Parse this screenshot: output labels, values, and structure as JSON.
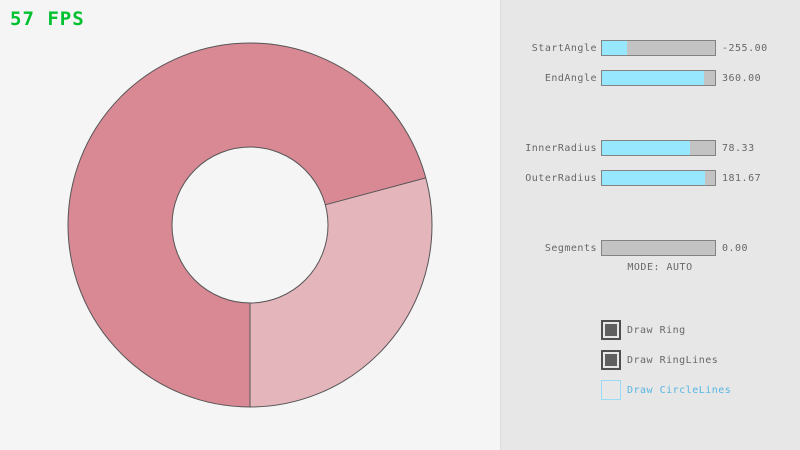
{
  "fps": {
    "text": "57 FPS"
  },
  "colors": {
    "canvas_bg": "#f5f5f5",
    "panel_bg": "#e7e7e7",
    "accent": "#97e8ff",
    "fps_green": "#00c12f",
    "ring_light": "#e5b5bc",
    "ring_dark": "#d98994",
    "ring_outline": "#555555",
    "slider_border": "#838383",
    "slider_track": "#c3c3c3",
    "text_gray": "#686868",
    "blue_text": "#55b6e2",
    "blue_border": "#9adcf5",
    "checkbox_dark": "#5f5f5f",
    "checkbox_border": "#4f4f4f"
  },
  "panel": {
    "sliders": [
      {
        "label": "StartAngle",
        "value": "-255.00",
        "fill_pct": 22
      },
      {
        "label": "EndAngle",
        "value": "360.00",
        "fill_pct": 90
      },
      {
        "label": "InnerRadius",
        "value": "78.33",
        "fill_pct": 78
      },
      {
        "label": "OuterRadius",
        "value": "181.67",
        "fill_pct": 91
      },
      {
        "label": "Segments",
        "value": "0.00",
        "fill_pct": 0
      }
    ],
    "mode_label": "MODE: AUTO",
    "checkboxes": [
      {
        "label": "Draw Ring",
        "checked": true
      },
      {
        "label": "Draw RingLines",
        "checked": true
      },
      {
        "label": "Draw CircleLines",
        "checked": false
      }
    ]
  }
}
